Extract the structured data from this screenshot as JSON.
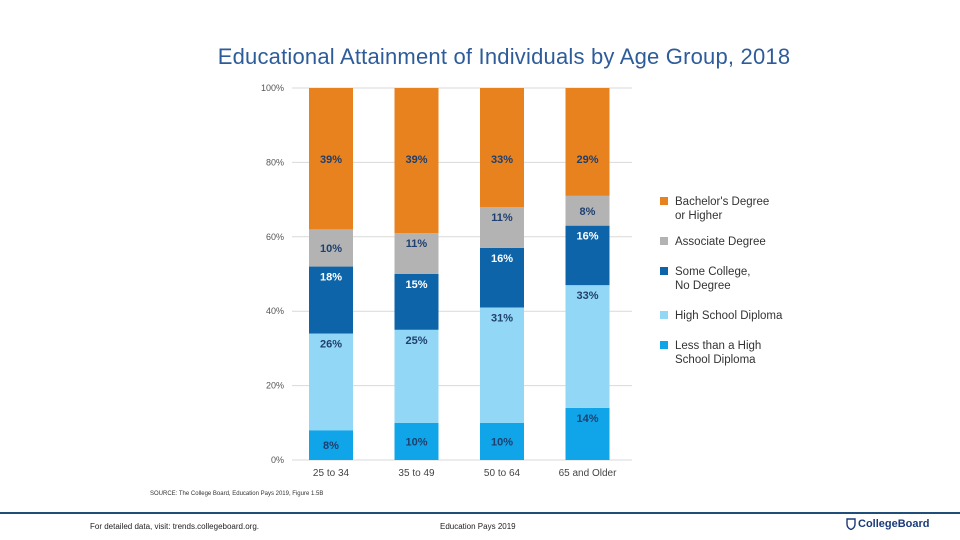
{
  "chart_data": {
    "type": "bar",
    "stacked": true,
    "title": "Educational Attainment of Individuals by Age Group, 2018",
    "categories": [
      "25 to 34",
      "35 to 49",
      "50 to 64",
      "65 and Older"
    ],
    "ylim": [
      0,
      100
    ],
    "yticks": [
      "0%",
      "20%",
      "40%",
      "60%",
      "80%",
      "100%"
    ],
    "series": [
      {
        "name": "Less than a High School Diploma",
        "color": "#10a5e8",
        "values": [
          8,
          10,
          10,
          14
        ],
        "labels": [
          "8%",
          "10%",
          "10%",
          "14%"
        ]
      },
      {
        "name": "High School Diploma",
        "color": "#92d7f5",
        "values": [
          26,
          25,
          31,
          33
        ],
        "labels": [
          "26%",
          "25%",
          "31%",
          "33%"
        ]
      },
      {
        "name": "Some College, No Degree",
        "color": "#0e64a8",
        "values": [
          18,
          15,
          16,
          16
        ],
        "labels": [
          "18%",
          "15%",
          "16%",
          "16%"
        ]
      },
      {
        "name": "Associate Degree",
        "color": "#b3b3b3",
        "values": [
          10,
          11,
          11,
          8
        ],
        "labels": [
          "10%",
          "11%",
          "11%",
          "8%"
        ]
      },
      {
        "name": "Bachelor's Degree or Higher",
        "color": "#e8821e",
        "values": [
          39,
          39,
          33,
          29
        ],
        "labels": [
          "39%",
          "39%",
          "33%",
          "29%"
        ]
      }
    ],
    "legend": [
      {
        "lines": [
          "Bachelor's Degree",
          "or Higher"
        ],
        "color": "#e8821e"
      },
      {
        "lines": [
          "Associate Degree"
        ],
        "color": "#b3b3b3"
      },
      {
        "lines": [
          "Some College,",
          "No Degree"
        ],
        "color": "#0e64a8"
      },
      {
        "lines": [
          "High School Diploma"
        ],
        "color": "#92d7f5"
      },
      {
        "lines": [
          "Less than a High",
          "School Diploma"
        ],
        "color": "#10a5e8"
      }
    ],
    "legend_position": "right"
  },
  "source_text": "SOURCE: The College Board, Education Pays 2019, Figure 1.5B",
  "footer": {
    "left": "For detailed data, visit: trends.collegeboard.org.",
    "center": "Education Pays 2019",
    "brand": "CollegeBoard"
  }
}
